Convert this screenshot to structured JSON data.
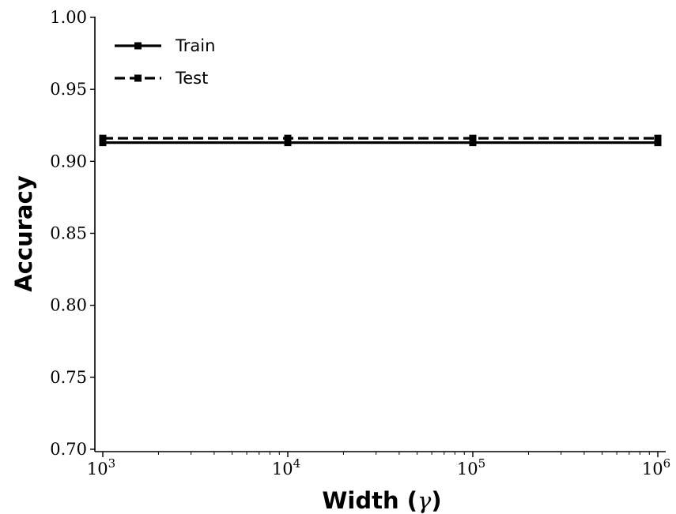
{
  "chart_data": {
    "type": "line",
    "title": "",
    "xlabel": "Width ($\\gamma$)",
    "xlabel_main": "Width (",
    "xlabel_symbol": "γ",
    "xlabel_close": ")",
    "ylabel": "Accuracy",
    "xscale": "log",
    "x": [
      1000,
      10000,
      100000,
      1000000
    ],
    "x_tick_labels": [
      {
        "base": "10",
        "exp": "3"
      },
      {
        "base": "10",
        "exp": "4"
      },
      {
        "base": "10",
        "exp": "5"
      },
      {
        "base": "10",
        "exp": "6"
      }
    ],
    "xlim": [
      1000,
      1000000
    ],
    "ylim": [
      0.7,
      1.0
    ],
    "y_ticks": [
      0.7,
      0.75,
      0.8,
      0.85,
      0.9,
      0.95,
      1.0
    ],
    "y_tick_labels": [
      "0.70",
      "0.75",
      "0.80",
      "0.85",
      "0.90",
      "0.95",
      "1.00"
    ],
    "series": [
      {
        "name": "Train",
        "values": [
          0.913,
          0.913,
          0.913,
          0.913
        ],
        "style": "solid",
        "color": "#000000"
      },
      {
        "name": "Test",
        "values": [
          0.916,
          0.916,
          0.916,
          0.916
        ],
        "style": "dashed",
        "color": "#000000"
      }
    ],
    "legend": "top-left",
    "grid": false
  }
}
